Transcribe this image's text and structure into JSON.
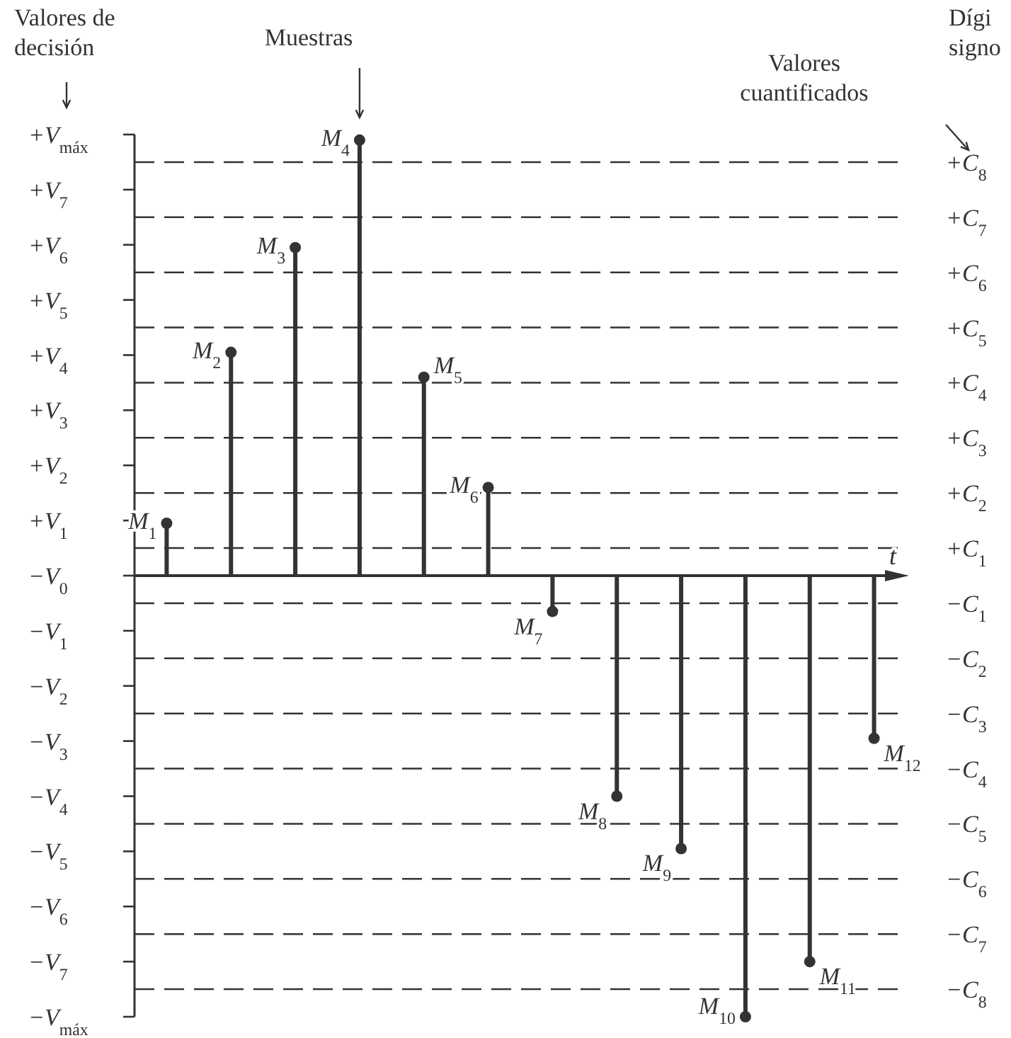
{
  "chart_data": {
    "type": "lollipop",
    "categories": [
      null,
      null,
      null,
      null,
      null,
      null,
      null,
      null,
      null,
      null,
      null,
      null
    ],
    "values": [
      0.95,
      4.05,
      5.95,
      7.9,
      3.6,
      1.6,
      -0.65,
      -4.0,
      -4.95,
      -8.0,
      -7.0,
      -2.95
    ],
    "color": "#333333",
    "marker": "circle",
    "xlabel": "t",
    "ylim": [
      -8,
      8
    ],
    "yticks": [
      {
        "value": 8,
        "label": "+V$_{máx}$"
      },
      {
        "value": 7,
        "label": "+V$_{7}$"
      },
      {
        "value": 6,
        "label": "+V$_{6}$"
      },
      {
        "value": 5,
        "label": "+V$_{5}$"
      },
      {
        "value": 4,
        "label": "+V$_{4}$"
      },
      {
        "value": 3,
        "label": "+V$_{3}$"
      },
      {
        "value": 2,
        "label": "+V$_{2}$"
      },
      {
        "value": 1,
        "label": "+V$_{1}$"
      },
      {
        "value": 0,
        "label": "−V$_{0}$"
      },
      {
        "value": -1,
        "label": "−V$_{1}$"
      },
      {
        "value": -2,
        "label": "−V$_{2}$"
      },
      {
        "value": -3,
        "label": "−V$_{3}$"
      },
      {
        "value": -4,
        "label": "−V$_{4}$"
      },
      {
        "value": -5,
        "label": "−V$_{5}$"
      },
      {
        "value": -6,
        "label": "−V$_{6}$"
      },
      {
        "value": -7,
        "label": "−V$_{7}$"
      },
      {
        "value": -8,
        "label": "−V$_{máx}$"
      }
    ],
    "ref_lines": [
      {
        "axis": "y",
        "value": 7.5,
        "label": "+C$_{8}$",
        "line_style": "dashed"
      },
      {
        "axis": "y",
        "value": 6.5,
        "label": "+C$_{7}$",
        "line_style": "dashed"
      },
      {
        "axis": "y",
        "value": 5.5,
        "label": "+C$_{6}$",
        "line_style": "dashed"
      },
      {
        "axis": "y",
        "value": 4.5,
        "label": "+C$_{5}$",
        "line_style": "dashed"
      },
      {
        "axis": "y",
        "value": 3.5,
        "label": "+C$_{4}$",
        "line_style": "dashed"
      },
      {
        "axis": "y",
        "value": 2.5,
        "label": "+C$_{3}$",
        "line_style": "dashed"
      },
      {
        "axis": "y",
        "value": 1.5,
        "label": "+C$_{2}$",
        "line_style": "dashed"
      },
      {
        "axis": "y",
        "value": 0.5,
        "label": "+C$_{1}$",
        "line_style": "dashed"
      },
      {
        "axis": "y",
        "value": -0.5,
        "label": "−C$_{1}$",
        "line_style": "dashed"
      },
      {
        "axis": "y",
        "value": -1.5,
        "label": "−C$_{2}$",
        "line_style": "dashed"
      },
      {
        "axis": "y",
        "value": -2.5,
        "label": "−C$_{3}$",
        "line_style": "dashed"
      },
      {
        "axis": "y",
        "value": -3.5,
        "label": "−C$_{4}$",
        "line_style": "dashed"
      },
      {
        "axis": "y",
        "value": -4.5,
        "label": "−C$_{5}$",
        "line_style": "dashed"
      },
      {
        "axis": "y",
        "value": -5.5,
        "label": "−C$_{6}$",
        "line_style": "dashed"
      },
      {
        "axis": "y",
        "value": -6.5,
        "label": "−C$_{7}$",
        "line_style": "dashed"
      },
      {
        "axis": "y",
        "value": -7.5,
        "label": "−C$_{8}$",
        "line_style": "dashed"
      }
    ],
    "annotations": [
      "Valores de\ndecisión",
      "Muestras",
      "Valores\ncuantificados",
      "Dígi\nsigno",
      "M$_{1}$",
      "M$_{2}$",
      "M$_{3}$",
      "M$_{4}$",
      "M$_{5}$",
      "M$_{6}$",
      "M$_{7}$",
      "M$_{8}$",
      "M$_{9}$",
      "M$_{10}$",
      "M$_{11}$",
      "M$_{12}$"
    ]
  }
}
